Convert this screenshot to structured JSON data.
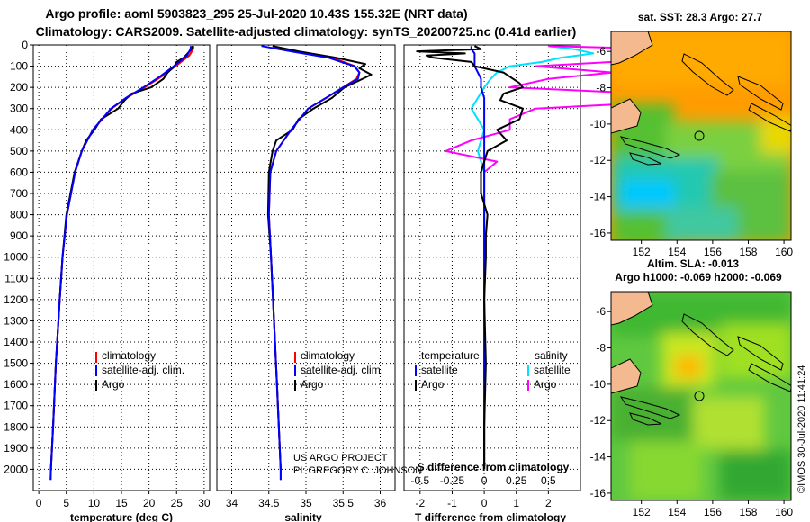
{
  "title": {
    "line1": "Argo profile: aoml 5903823_295 25-Jul-2020 10.43S 155.32E (NRT data)",
    "line2": "Climatology: CARS2009. Satellite-adjusted climatology: synTS_20200725.nc (0.41d earlier)"
  },
  "colors": {
    "climatology": "#ff0000",
    "satellite": "#0000ff",
    "argo": "#000000",
    "sal_satellite": "#00e0ff",
    "sal_argo": "#ff00ff",
    "land": "#f4b98f"
  },
  "credits": {
    "project": "US ARGO PROJECT",
    "pi": "PI: GREGORY C. JOHNSON",
    "imos": "©IMOS 30-Jul-2020 11:41:24"
  },
  "chart_data": [
    {
      "type": "line",
      "name": "temperature",
      "xlabel": "temperature (deg C)",
      "ylabel": "",
      "xlim": [
        -1,
        31
      ],
      "ylim": [
        2100,
        0
      ],
      "xticks": [
        0,
        5,
        10,
        15,
        20,
        25,
        30
      ],
      "yticks": [
        0,
        100,
        200,
        300,
        400,
        500,
        600,
        700,
        800,
        900,
        1000,
        1100,
        1200,
        1300,
        1400,
        1500,
        1600,
        1700,
        1800,
        1900,
        2000
      ],
      "legend": [
        "climatology",
        "satellite-adj. clim.",
        "Argo"
      ],
      "series": [
        {
          "name": "climatology",
          "depth": [
            5,
            20,
            50,
            80,
            100,
            150,
            200,
            250,
            300,
            400,
            500,
            600,
            800,
            1000,
            1200,
            1500,
            1800,
            2000,
            2050
          ],
          "values": [
            28.1,
            28.0,
            27.3,
            25.8,
            24.8,
            22.2,
            19.2,
            15.9,
            13.2,
            9.8,
            7.8,
            6.6,
            5.1,
            4.3,
            3.8,
            3.1,
            2.6,
            2.2,
            2.15
          ]
        },
        {
          "name": "satellite-adj. clim.",
          "depth": [
            5,
            20,
            50,
            80,
            100,
            150,
            200,
            250,
            300,
            400,
            500,
            600,
            800,
            1000,
            1200,
            1500,
            1800,
            2000,
            2050
          ],
          "values": [
            27.6,
            27.5,
            26.9,
            25.5,
            24.5,
            21.9,
            19.0,
            15.8,
            13.1,
            9.8,
            7.8,
            6.6,
            5.1,
            4.3,
            3.8,
            3.1,
            2.6,
            2.2,
            2.15
          ]
        },
        {
          "name": "Argo",
          "depth": [
            5,
            20,
            40,
            60,
            80,
            100,
            130,
            160,
            200,
            230,
            260,
            300,
            350,
            400,
            450,
            500,
            600,
            800,
            1000,
            1200,
            1500,
            1800,
            2000
          ],
          "values": [
            27.9,
            27.7,
            27.0,
            26.3,
            25.0,
            24.6,
            23.4,
            22.6,
            20.4,
            16.8,
            15.6,
            14.4,
            11.3,
            10.1,
            8.6,
            7.8,
            6.5,
            5.0,
            4.3,
            3.8,
            3.1,
            2.6,
            2.2
          ]
        }
      ]
    },
    {
      "type": "line",
      "name": "salinity",
      "xlabel": "salinity",
      "ylabel": "",
      "xlim": [
        33.8,
        36.2
      ],
      "ylim": [
        2100,
        0
      ],
      "xticks": [
        34,
        34.5,
        35,
        35.5,
        36
      ],
      "legend": [
        "climatology",
        "satellite-adj. clim.",
        "Argo"
      ],
      "series": [
        {
          "name": "climatology",
          "depth": [
            5,
            30,
            60,
            100,
            130,
            160,
            200,
            250,
            300,
            400,
            500,
            600,
            800,
            1000,
            1300,
            1600,
            2000,
            2050
          ],
          "values": [
            34.55,
            34.85,
            35.35,
            35.66,
            35.72,
            35.68,
            35.5,
            35.27,
            35.03,
            34.8,
            34.6,
            34.52,
            34.5,
            34.53,
            34.57,
            34.61,
            34.66,
            34.66
          ]
        },
        {
          "name": "satellite-adj. clim.",
          "depth": [
            5,
            30,
            60,
            100,
            130,
            160,
            200,
            250,
            300,
            400,
            500,
            600,
            800,
            1000,
            1300,
            1600,
            2000,
            2050
          ],
          "values": [
            34.4,
            34.8,
            35.3,
            35.65,
            35.72,
            35.7,
            35.5,
            35.27,
            35.03,
            34.8,
            34.6,
            34.52,
            34.5,
            34.53,
            34.57,
            34.61,
            34.66,
            34.66
          ]
        },
        {
          "name": "Argo",
          "depth": [
            5,
            30,
            60,
            90,
            110,
            140,
            170,
            200,
            250,
            300,
            350,
            400,
            450,
            500,
            600,
            800,
            1000,
            1300,
            1600,
            2000
          ],
          "values": [
            34.55,
            34.9,
            35.4,
            35.8,
            35.72,
            35.88,
            35.7,
            35.52,
            35.35,
            35.1,
            34.9,
            34.82,
            34.6,
            34.55,
            34.5,
            34.49,
            34.53,
            34.57,
            34.61,
            34.66
          ]
        }
      ]
    },
    {
      "type": "line",
      "name": "difference",
      "xlabel": "T difference from climatology",
      "xlabel2": "S difference from climatology",
      "xlim": [
        -2.5,
        3.0
      ],
      "ylim": [
        2100,
        0
      ],
      "xticks": [
        -2,
        -1,
        0,
        1,
        2
      ],
      "xticks2": [
        -0.5,
        -0.25,
        0,
        0.25,
        0.5
      ],
      "legend_temperature": {
        "title": "temperature",
        "items": [
          "satellite",
          "Argo"
        ]
      },
      "legend_salinity": {
        "title": "salinity",
        "items": [
          "satellite",
          "Argo"
        ]
      },
      "series": [
        {
          "name": "T satellite",
          "depth": [
            5,
            20,
            40,
            60,
            80,
            100,
            130,
            160,
            200,
            250,
            300,
            400,
            500,
            600,
            800,
            1000,
            1500,
            2000
          ],
          "values": [
            -0.4,
            -0.4,
            -0.3,
            -0.3,
            -0.3,
            -0.3,
            -0.2,
            -0.1,
            -0.1,
            0,
            0,
            0,
            0,
            0,
            0,
            0,
            0,
            0
          ]
        },
        {
          "name": "T Argo",
          "depth": [
            5,
            20,
            30,
            40,
            50,
            60,
            70,
            80,
            100,
            130,
            160,
            180,
            200,
            230,
            260,
            300,
            350,
            400,
            450,
            500,
            550,
            600,
            700,
            800,
            900,
            1000,
            1200,
            1500,
            1800,
            2000
          ],
          "values": [
            -0.3,
            -0.1,
            -2.1,
            -0.6,
            -1.8,
            -1.6,
            -1.0,
            -0.4,
            -0.3,
            0.6,
            0.9,
            1.1,
            1.2,
            0.6,
            0.5,
            1.2,
            1.1,
            0.4,
            0.7,
            0.1,
            0.0,
            -0.1,
            -0.1,
            0.1,
            0.05,
            0.05,
            0.0,
            0.05,
            0.0,
            0.0
          ]
        },
        {
          "name": "S satellite",
          "depth": [
            5,
            20,
            40,
            60,
            80,
            100,
            130,
            160,
            200,
            250,
            300,
            400,
            500,
            600,
            800,
            1000,
            1500,
            2000
          ],
          "values": [
            0.5,
            0.7,
            0.85,
            0.6,
            0.45,
            0.2,
            0.1,
            0.05,
            0.0,
            -0.05,
            -0.1,
            0.0,
            -0.05,
            0.0,
            0.0,
            0.0,
            0.0,
            0.0
          ]
        },
        {
          "name": "S Argo",
          "depth": [
            5,
            20,
            30,
            40,
            50,
            60,
            70,
            80,
            100,
            130,
            160,
            200,
            250,
            300,
            350,
            400,
            450,
            500,
            550,
            600,
            800,
            1000,
            1200,
            1500,
            1800,
            2000
          ],
          "values": [
            0.5,
            1.5,
            1.9,
            1.3,
            1.8,
            1.7,
            1.9,
            1.0,
            0.4,
            1.0,
            0.5,
            0.2,
            2.0,
            0.4,
            0.2,
            0.2,
            -0.1,
            -0.3,
            0.1,
            0.0,
            0.0,
            0.0,
            0.0,
            0.0,
            0.0,
            0.0
          ]
        }
      ]
    },
    {
      "type": "heatmap",
      "name": "sst-map",
      "title": "sat. SST: 28.3 Argo: 27.7",
      "xticks": [
        152,
        154,
        156,
        158,
        160
      ],
      "yticks": [
        -6,
        -8,
        -10,
        -12,
        -14,
        -16
      ],
      "xlim": [
        150.3,
        160.4
      ],
      "ylim": [
        -16.4,
        -4.9
      ],
      "argo_position": [
        155.32,
        -10.43
      ]
    },
    {
      "type": "heatmap",
      "name": "sla-map",
      "title": "Altim. SLA: -0.013",
      "subtitle": "Argo h1000: -0.069 h2000: -0.069",
      "xticks": [
        152,
        154,
        156,
        158,
        160
      ],
      "yticks": [
        -6,
        -8,
        -10,
        -12,
        -14,
        -16
      ],
      "xlim": [
        150.3,
        160.4
      ],
      "ylim": [
        -16.4,
        -4.9
      ],
      "argo_position": [
        155.32,
        -10.43
      ]
    }
  ]
}
